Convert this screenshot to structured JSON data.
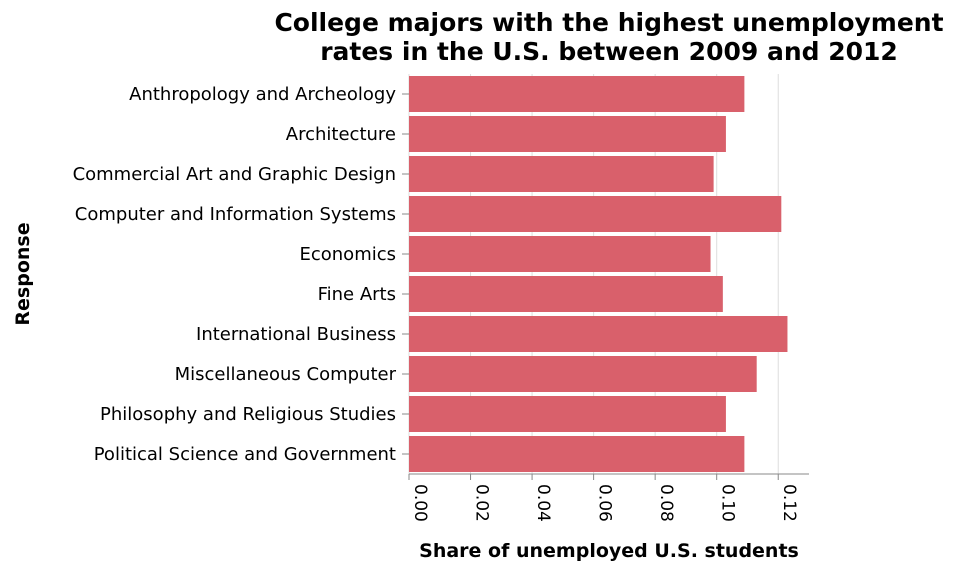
{
  "chart_data": {
    "type": "bar",
    "orientation": "horizontal",
    "title": "College majors with the highest unemployment rates in the U.S. between 2009 and 2012",
    "title_lines": [
      "College majors with the highest unemployment",
      "rates in the U.S. between 2009 and 2012"
    ],
    "xlabel": "Share of unemployed U.S. students",
    "ylabel": "Response",
    "xlim": [
      0,
      0.13
    ],
    "x_ticks": [
      "0.00",
      "0.02",
      "0.04",
      "0.06",
      "0.08",
      "0.10",
      "0.12"
    ],
    "grid": true,
    "bar_color": "#d9606b",
    "categories": [
      "Anthropology and Archeology",
      "Architecture",
      "Commercial Art and Graphic Design",
      "Computer and Information Systems",
      "Economics",
      "Fine Arts",
      "International Business",
      "Miscellaneous Computer",
      "Philosophy and Religious Studies",
      "Political Science and Government"
    ],
    "values": [
      0.109,
      0.103,
      0.099,
      0.121,
      0.098,
      0.102,
      0.123,
      0.113,
      0.103,
      0.109
    ]
  }
}
